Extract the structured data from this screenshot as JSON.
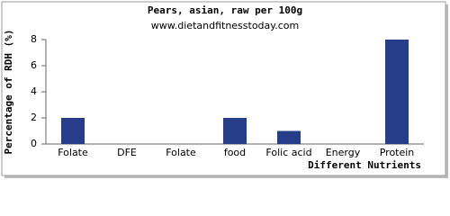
{
  "chart_data": {
    "type": "bar",
    "title": "Pears, asian, raw per 100g",
    "subtitle": "www.dietandfitnesstoday.com",
    "x_label": "Different Nutrients",
    "y_label": "Percentage of RDH (%)",
    "categories": [
      "Folate",
      "DFE",
      "Folate",
      "food",
      "Folic acid",
      "Energy",
      "Protein"
    ],
    "values": [
      2,
      0,
      0,
      2,
      1,
      0,
      8
    ],
    "color": "#263d8a",
    "ylim": [
      0,
      8
    ],
    "yticks": [
      0,
      2,
      4,
      6,
      8
    ],
    "grid": false
  }
}
